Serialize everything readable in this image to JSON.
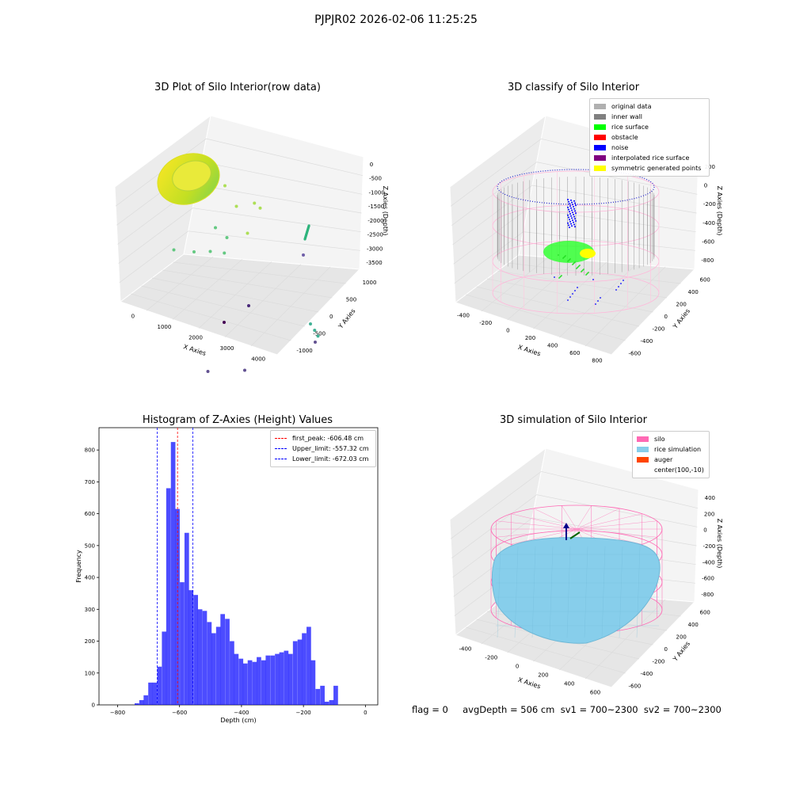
{
  "figure": {
    "suptitle": "PJPJR02 2026-02-06 11:25:25",
    "footer": "flag = 0     avgDepth = 506 cm  sv1 = 700~2300  sv2 = 700~2300"
  },
  "colors": {
    "pane_gray": "#f2f2f2",
    "grid": "#dcdcdc",
    "silo_pink": "#ff69b4",
    "rice_blue": "#87ceeb",
    "hist_blue": "#0000ff",
    "peak_red": "#ff0000",
    "limit_blue": "#0000ff"
  },
  "chart_data": [
    {
      "type": "scatter3d",
      "title": "3D Plot of Silo Interior(row data)",
      "xlabel": "X Axies",
      "ylabel": "Y Axies",
      "zlabel": "Z Axies (Depth)",
      "xticks": [
        "0",
        "1000",
        "2000",
        "3000",
        "4000"
      ],
      "yticks": [
        "-1000",
        "-500",
        "0",
        "500",
        "1000"
      ],
      "zticks": [
        "0",
        "-500",
        "-1000",
        "-1500",
        "-2000",
        "-2500",
        "-3000",
        "-3500"
      ],
      "xlim": [
        -500,
        4500
      ],
      "ylim": [
        -1100,
        1100
      ],
      "zlim": [
        -3700,
        200
      ],
      "colormap": "viridis",
      "outlier_points": [
        {
          "x": 1300,
          "y": 600,
          "z": -500
        },
        {
          "x": 1700,
          "y": 500,
          "z": -700
        },
        {
          "x": 2100,
          "y": 550,
          "z": -400
        },
        {
          "x": 2300,
          "y": 500,
          "z": -350
        },
        {
          "x": 1500,
          "y": 200,
          "z": -1100
        },
        {
          "x": 1900,
          "y": 100,
          "z": -1000
        },
        {
          "x": 2200,
          "y": 300,
          "z": -900
        },
        {
          "x": 1000,
          "y": -300,
          "z": -1500
        },
        {
          "x": 1400,
          "y": -200,
          "z": -1400
        },
        {
          "x": 1700,
          "y": -100,
          "z": -1300
        },
        {
          "x": 2000,
          "y": -50,
          "z": -1200
        },
        {
          "x": 3900,
          "y": 200,
          "z": -2200
        },
        {
          "x": 3950,
          "y": 250,
          "z": -2400
        },
        {
          "x": 3980,
          "y": 300,
          "z": -2600
        },
        {
          "x": 3800,
          "y": 400,
          "z": -3000
        },
        {
          "x": 2900,
          "y": -400,
          "z": -3500
        },
        {
          "x": 2300,
          "y": -700,
          "z": -3600
        }
      ]
    },
    {
      "type": "scatter3d",
      "title": "3D classify of Silo Interior",
      "xlabel": "X Axies",
      "ylabel": "Y Axies",
      "zlabel": "Z Axies (Depth)",
      "xticks": [
        "-400",
        "-200",
        "0",
        "200",
        "400",
        "600",
        "800"
      ],
      "yticks": [
        "-600",
        "-400",
        "-200",
        "0",
        "200",
        "400",
        "600"
      ],
      "zticks": [
        "200",
        "0",
        "-200",
        "-400",
        "-600",
        "-800"
      ],
      "legend": [
        {
          "label": "original data",
          "color": "#b0b0b0"
        },
        {
          "label": "inner wall",
          "color": "#808080"
        },
        {
          "label": "rice surface",
          "color": "#00ff00"
        },
        {
          "label": "obstacle",
          "color": "#ff0000"
        },
        {
          "label": "noise",
          "color": "#0000ff"
        },
        {
          "label": "interpolated rice surface",
          "color": "#800080"
        },
        {
          "label": "symmetric generated points",
          "color": "#ffff00"
        }
      ],
      "legend_loc": "upper right"
    },
    {
      "type": "bar",
      "title": "Histogram of Z-Axies (Height) Values",
      "xlabel": "Depth (cm)",
      "ylabel": "Frequency",
      "xlim": [
        -860,
        40
      ],
      "ylim": [
        0,
        870
      ],
      "xticks": [
        -800,
        -600,
        -400,
        -200,
        0
      ],
      "yticks": [
        0,
        100,
        200,
        300,
        400,
        500,
        600,
        700,
        800
      ],
      "bin_width": 14.6,
      "bins": [
        {
          "x0": -745,
          "v": 5
        },
        {
          "x0": -730,
          "v": 15
        },
        {
          "x0": -716,
          "v": 30
        },
        {
          "x0": -701,
          "v": 70
        },
        {
          "x0": -687,
          "v": 70
        },
        {
          "x0": -672,
          "v": 120
        },
        {
          "x0": -657,
          "v": 230
        },
        {
          "x0": -643,
          "v": 680
        },
        {
          "x0": -628,
          "v": 825
        },
        {
          "x0": -614,
          "v": 615
        },
        {
          "x0": -599,
          "v": 385
        },
        {
          "x0": -584,
          "v": 540
        },
        {
          "x0": -570,
          "v": 360
        },
        {
          "x0": -555,
          "v": 345
        },
        {
          "x0": -541,
          "v": 300
        },
        {
          "x0": -526,
          "v": 295
        },
        {
          "x0": -511,
          "v": 260
        },
        {
          "x0": -497,
          "v": 225
        },
        {
          "x0": -482,
          "v": 245
        },
        {
          "x0": -468,
          "v": 285
        },
        {
          "x0": -453,
          "v": 270
        },
        {
          "x0": -438,
          "v": 200
        },
        {
          "x0": -424,
          "v": 160
        },
        {
          "x0": -409,
          "v": 145
        },
        {
          "x0": -395,
          "v": 130
        },
        {
          "x0": -380,
          "v": 140
        },
        {
          "x0": -365,
          "v": 135
        },
        {
          "x0": -351,
          "v": 150
        },
        {
          "x0": -336,
          "v": 140
        },
        {
          "x0": -322,
          "v": 155
        },
        {
          "x0": -307,
          "v": 155
        },
        {
          "x0": -292,
          "v": 160
        },
        {
          "x0": -278,
          "v": 165
        },
        {
          "x0": -263,
          "v": 170
        },
        {
          "x0": -249,
          "v": 160
        },
        {
          "x0": -234,
          "v": 200
        },
        {
          "x0": -219,
          "v": 205
        },
        {
          "x0": -205,
          "v": 225
        },
        {
          "x0": -190,
          "v": 245
        },
        {
          "x0": -176,
          "v": 140
        },
        {
          "x0": -161,
          "v": 50
        },
        {
          "x0": -146,
          "v": 60
        },
        {
          "x0": -132,
          "v": 10
        },
        {
          "x0": -117,
          "v": 15
        },
        {
          "x0": -103,
          "v": 60
        }
      ],
      "vlines": [
        {
          "x": -606.48,
          "color": "#ff0000",
          "label": "first_peak: -606.48 cm"
        },
        {
          "x": -557.32,
          "color": "#0000ff",
          "label": "Upper_limit: -557.32 cm"
        },
        {
          "x": -672.03,
          "color": "#0000ff",
          "label": "Lower_limit: -672.03 cm"
        }
      ],
      "legend_loc": "upper right"
    },
    {
      "type": "surface3d",
      "title": "3D simulation of Silo Interior",
      "xlabel": "X Axies",
      "ylabel": "Y Axies",
      "zlabel": "Z Axies (Depth)",
      "xticks": [
        "-400",
        "-200",
        "0",
        "200",
        "400",
        "600"
      ],
      "yticks": [
        "-600",
        "-400",
        "-200",
        "0",
        "200",
        "400",
        "600"
      ],
      "zticks": [
        "400",
        "200",
        "0",
        "-200",
        "-400",
        "-600",
        "-800"
      ],
      "legend": [
        {
          "label": "silo",
          "color": "#ff69b4"
        },
        {
          "label": "rice simulation",
          "color": "#87ceeb"
        },
        {
          "label": "auger",
          "color": "#ff4500"
        },
        {
          "label": "center(100,-10)",
          "color": ""
        }
      ],
      "legend_loc": "upper right"
    }
  ]
}
